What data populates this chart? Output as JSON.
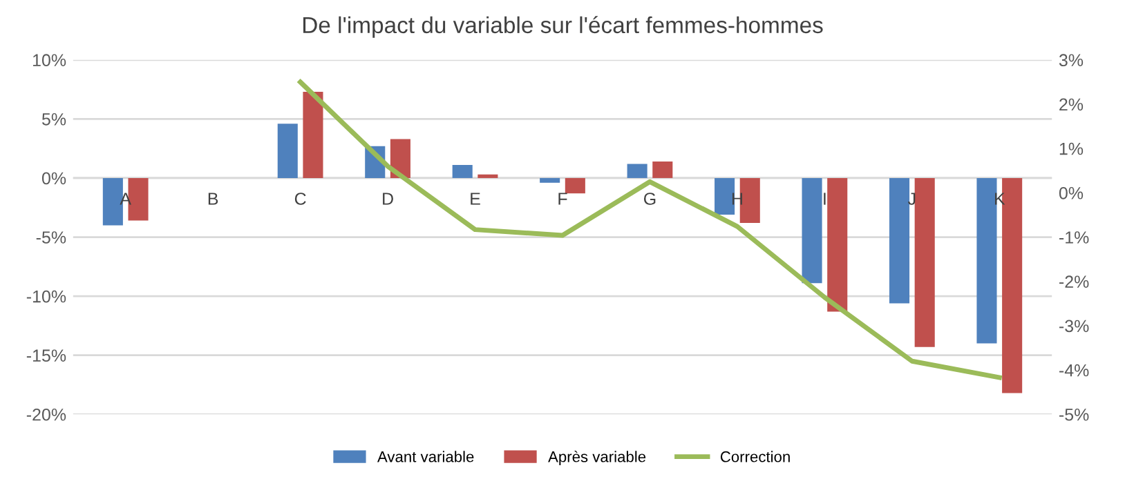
{
  "chart_data": {
    "type": "bar",
    "title": "De l'impact du variable sur l'écart femmes-hommes",
    "categories": [
      "A",
      "B",
      "C",
      "D",
      "E",
      "F",
      "G",
      "H",
      "I",
      "J",
      "K"
    ],
    "series": [
      {
        "name": "Avant variable",
        "color": "#4f81bd",
        "values": [
          -4.0,
          null,
          4.6,
          2.7,
          1.1,
          -0.4,
          1.2,
          -3.1,
          -8.9,
          -10.6,
          -14.0
        ]
      },
      {
        "name": "Après variable",
        "color": "#c0504d",
        "values": [
          -3.6,
          null,
          7.3,
          3.3,
          0.3,
          -1.3,
          1.4,
          -3.8,
          -11.3,
          -14.3,
          -18.2
        ]
      },
      {
        "name": "Correction",
        "color": "#9bbb59",
        "type": "line",
        "axis": "y2",
        "values": [
          null,
          null,
          2.5,
          0.6,
          -0.83,
          -0.96,
          0.25,
          -0.76,
          -2.36,
          -3.8,
          -4.17
        ]
      }
    ],
    "ylim": [
      -20,
      10
    ],
    "yticks": [
      {
        "value": -20,
        "label": "-20%"
      },
      {
        "value": -15,
        "label": "-15%"
      },
      {
        "value": -10,
        "label": "-10%"
      },
      {
        "value": -5,
        "label": "-5%"
      },
      {
        "value": 0,
        "label": "0%"
      },
      {
        "value": 5,
        "label": "5%"
      },
      {
        "value": 10,
        "label": "10%"
      }
    ],
    "y2lim": [
      -5,
      3
    ],
    "y2ticks": [
      {
        "value": -5,
        "label": "-5%"
      },
      {
        "value": -4,
        "label": "-4%"
      },
      {
        "value": -3,
        "label": "-3%"
      },
      {
        "value": -2,
        "label": "-2%"
      },
      {
        "value": -1,
        "label": "-1%"
      },
      {
        "value": 0,
        "label": "0%"
      },
      {
        "value": 1,
        "label": "1%"
      },
      {
        "value": 2,
        "label": "2%"
      },
      {
        "value": 3,
        "label": "3%"
      }
    ],
    "grid": "y",
    "legend": "bottom"
  }
}
